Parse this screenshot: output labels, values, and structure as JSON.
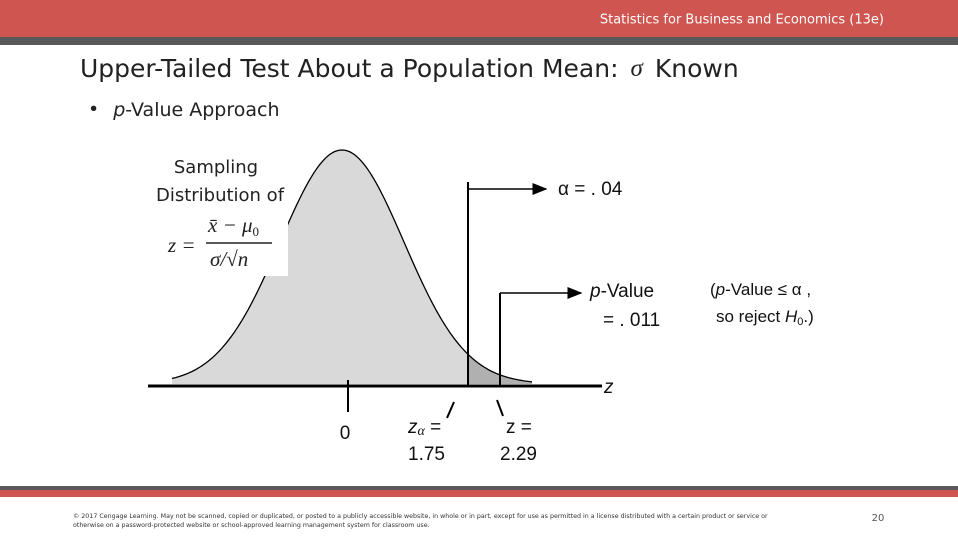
{
  "header": {
    "course": "Statistics for Business and Economics (13e)"
  },
  "title": {
    "text": "Upper-Tailed Test About a Population Mean:",
    "symbol": "σ",
    "suffix": "Known"
  },
  "bullet": {
    "italic": "p",
    "text": "-Value Approach"
  },
  "diagram": {
    "caption_line1": "Sampling",
    "caption_line2": "Distribution of",
    "formula": {
      "lhs": "z =",
      "numerator": "x̄ − μ",
      "numerator_sub": "0",
      "denominator": "σ/√n"
    },
    "alpha_label": "α = . 04",
    "pvalue_italic": "p",
    "pvalue_text": "-Value",
    "pvalue_number": "= . 011",
    "decision_open": "(",
    "decision_italic": "p",
    "decision_text": "-Value ≤ α ,",
    "decision_line2": "so reject ",
    "decision_h": "H",
    "decision_h_sub": "0",
    "decision_end": ".)",
    "axis_label": "z",
    "zero_label": "0",
    "z_alpha_label": "z",
    "z_alpha_sub": "α",
    "z_alpha_eq": " =",
    "z_alpha_value": "1.75",
    "z_stat_label": "z =",
    "z_stat_value": "2.29"
  },
  "footer": {
    "copyright_line1": "© 2017 Cengage Learning. May not be scanned, copied or duplicated, or posted to a publicly accessible website, in whole or in part, except for use as permitted in a license distributed with a certain product or service or",
    "copyright_line2": "otherwise on a password-protected website or school-approved learning management system for classroom use.",
    "page": "20"
  }
}
